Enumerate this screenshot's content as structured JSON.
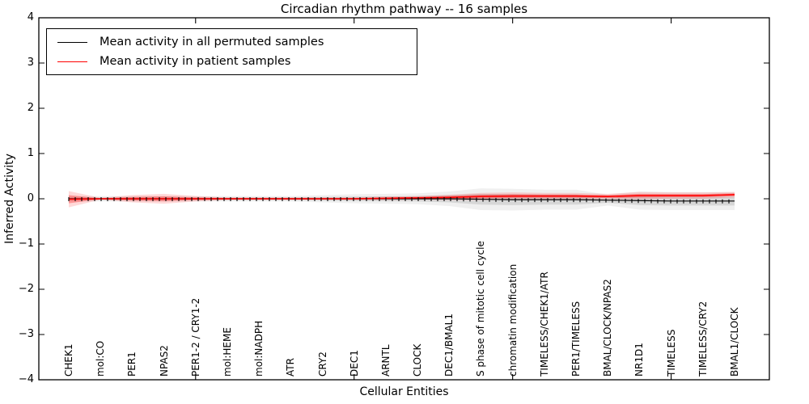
{
  "title": "Circadian rhythm pathway -- 16 samples",
  "axes": {
    "xlabel": "Cellular Entities",
    "ylabel": "Inferred Activity",
    "ytick_labels": [
      "4",
      "3",
      "2",
      "1",
      "0",
      "−1",
      "−2",
      "−3",
      "−4"
    ]
  },
  "legend": {
    "entries": [
      {
        "label": "Mean activity in all permuted samples",
        "color": "#000000"
      },
      {
        "label": "Mean activity in patient samples",
        "color": "#ff0000"
      }
    ]
  },
  "colors": {
    "permuted_line": "#000000",
    "patient_line": "#ff0000",
    "permuted_band_inner": "rgba(0,0,0,0.10)",
    "permuted_band_outer": "rgba(0,0,0,0.06)",
    "patient_band_inner": "rgba(255,0,0,0.30)",
    "patient_band_outer": "rgba(255,0,0,0.15)"
  },
  "chart_data": {
    "type": "line",
    "title": "Circadian rhythm pathway -- 16 samples",
    "xlabel": "Cellular Entities",
    "ylabel": "Inferred Activity",
    "ylim": [
      -4,
      4
    ],
    "yticks": [
      4,
      3,
      2,
      1,
      0,
      -1,
      -2,
      -3,
      -4
    ],
    "grid": false,
    "legend_position": "upper left",
    "x_major_tick_category_indices": [
      4,
      9,
      14,
      19
    ],
    "categories": [
      "CHEK1",
      "mol:CO",
      "PER1",
      "NPAS2",
      "PER1-2 / CRY1-2",
      "mol:HEME",
      "mol:NADPH",
      "ATR",
      "CRY2",
      "DEC1",
      "ARNTL",
      "CLOCK",
      "DEC1/BMAL1",
      "S phase of mitotic cell cycle",
      "chromatin modification",
      "TIMELESS/CHEK1/ATR",
      "PER1/TIMELESS",
      "BMAL/CLOCK/NPAS2",
      "NR1D1",
      "TIMELESS",
      "TIMELESS/CRY2",
      "BMAL1/CLOCK"
    ],
    "series": [
      {
        "name": "Mean activity in all permuted samples",
        "color": "#000000",
        "values": [
          0,
          0,
          0,
          0,
          0,
          0,
          0,
          0,
          0,
          0,
          0,
          0,
          0,
          -0.01,
          -0.02,
          -0.02,
          -0.02,
          -0.03,
          -0.04,
          -0.05,
          -0.05,
          -0.05
        ],
        "std": [
          0.03,
          0.03,
          0.03,
          0.03,
          0.03,
          0.03,
          0.03,
          0.03,
          0.04,
          0.05,
          0.055,
          0.06,
          0.08,
          0.12,
          0.12,
          0.11,
          0.11,
          0.06,
          0.1,
          0.1,
          0.1,
          0.1
        ]
      },
      {
        "name": "Mean activity in patient samples",
        "color": "#ff0000",
        "values": [
          -0.01,
          0,
          0,
          0,
          0,
          0,
          0,
          0,
          0,
          0,
          0.01,
          0.02,
          0.03,
          0.05,
          0.06,
          0.06,
          0.06,
          0.05,
          0.07,
          0.07,
          0.07,
          0.09
        ],
        "std": [
          0.09,
          0.01,
          0.04,
          0.055,
          0.03,
          0.015,
          0.015,
          0.015,
          0.015,
          0.015,
          0.02,
          0.02,
          0.03,
          0.04,
          0.04,
          0.035,
          0.035,
          0.03,
          0.04,
          0.035,
          0.035,
          0.03
        ]
      }
    ],
    "bands": "shaded regions show mean ± 1 and ± 2 std dev for each series"
  }
}
